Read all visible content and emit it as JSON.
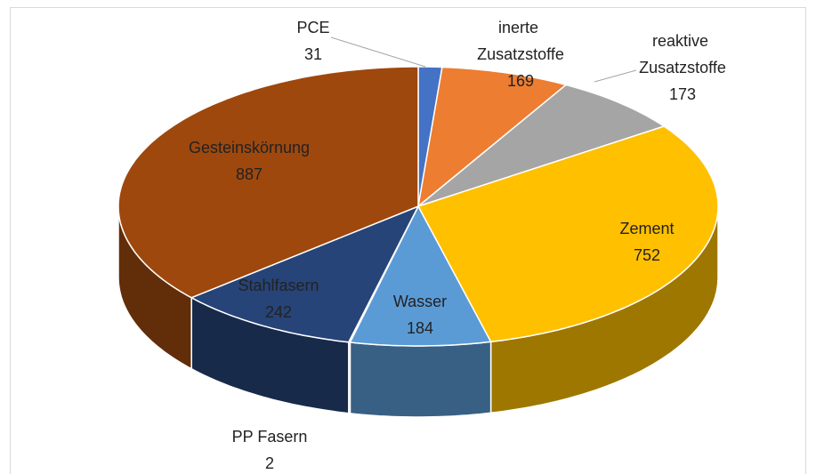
{
  "chart_data": {
    "type": "pie",
    "categories": [
      "PCE",
      "inerte Zusatzstoffe",
      "reaktive Zusatzstoffe",
      "Zement",
      "Wasser",
      "PP Fasern",
      "Stahlfasern",
      "Gesteinskörnung"
    ],
    "values": [
      31,
      169,
      173,
      752,
      184,
      2,
      242,
      887
    ],
    "colors": [
      "#4472c4",
      "#ed7d31",
      "#a5a5a5",
      "#ffc000",
      "#5b9bd5",
      "#70ad47",
      "#264478",
      "#9e480e"
    ],
    "three_d": true
  }
}
